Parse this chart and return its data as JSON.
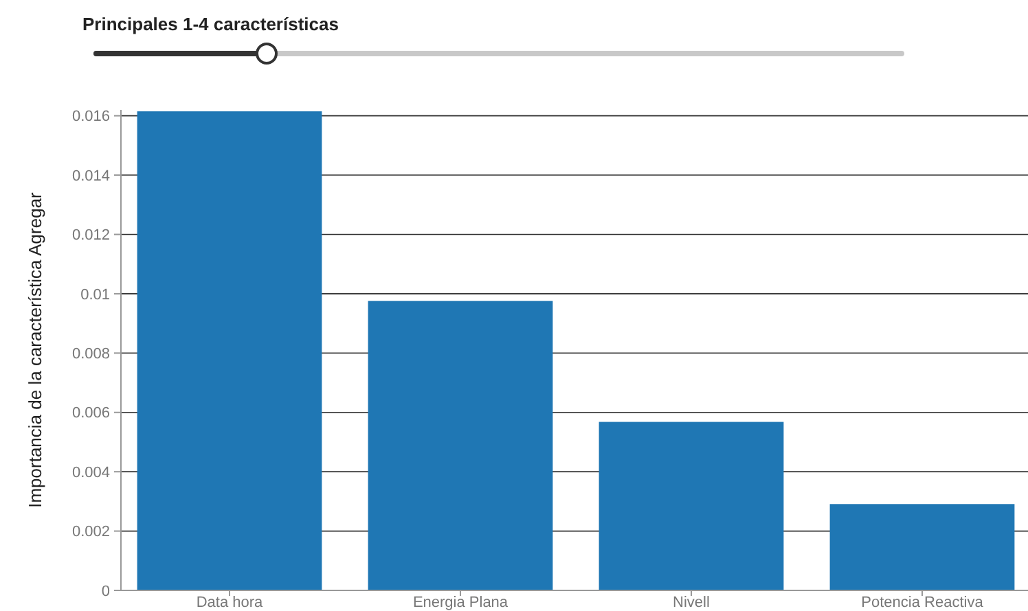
{
  "chart_data": {
    "type": "bar",
    "title": "Principales 1-4 características",
    "ylabel": "Importancia de la característica Agregar",
    "categories": [
      "Data hora",
      "Energia Plana",
      "Nivell",
      "Potencia Reactiva"
    ],
    "values": [
      0.01615,
      0.00976,
      0.00568,
      0.00291
    ],
    "color": "#1f77b4",
    "ylim": [
      0,
      0.0162
    ],
    "yticks": [
      {
        "value": 0,
        "label": "0"
      },
      0.002,
      0.004,
      0.006,
      0.008,
      {
        "value": 0.01,
        "label": "0.01"
      },
      0.012,
      0.014,
      0.016
    ],
    "grid": "y"
  }
}
